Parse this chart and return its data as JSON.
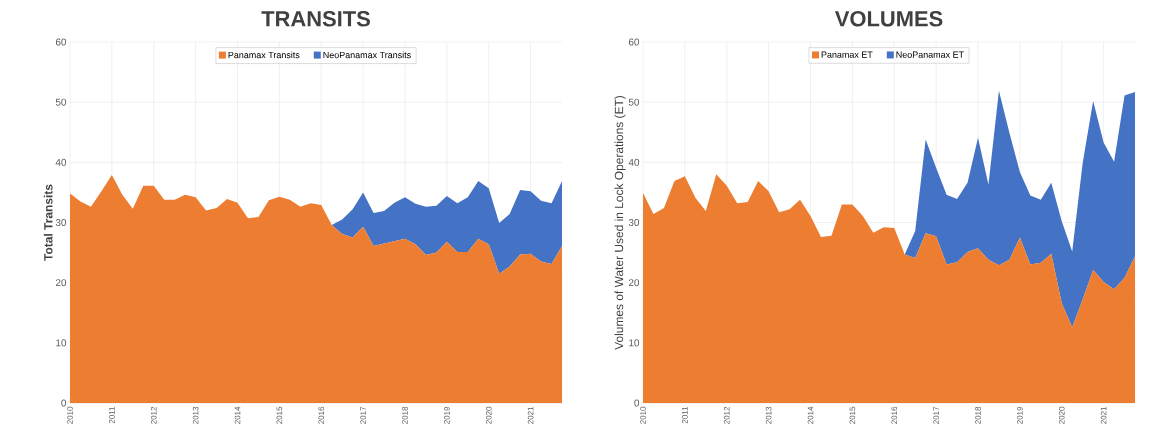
{
  "chart_data": [
    {
      "type": "area",
      "title": "TRANSITS",
      "ylabel": "Total Transits",
      "stacked": true,
      "grid": true,
      "legend": "top",
      "x": [
        2010,
        2010.25,
        2010.5,
        2010.75,
        2011,
        2011.25,
        2011.5,
        2011.75,
        2012,
        2012.25,
        2012.5,
        2012.75,
        2013,
        2013.25,
        2013.5,
        2013.75,
        2014,
        2014.25,
        2014.5,
        2014.75,
        2015,
        2015.25,
        2015.5,
        2015.75,
        2016,
        2016.25,
        2016.5,
        2016.75,
        2017,
        2017.25,
        2017.5,
        2017.75,
        2018,
        2018.25,
        2018.5,
        2018.75,
        2019,
        2019.25,
        2019.5,
        2019.75,
        2020,
        2020.25,
        2020.5,
        2020.75,
        2021,
        2021.25,
        2021.5,
        2021.75
      ],
      "xlim": [
        2010,
        2021.75
      ],
      "xticks": [
        2010,
        2011,
        2012,
        2013,
        2014,
        2015,
        2016,
        2017,
        2018,
        2019,
        2020,
        2021
      ],
      "ylim": [
        0,
        60
      ],
      "yticks": [
        0,
        10,
        20,
        30,
        40,
        50,
        60
      ],
      "series": [
        {
          "name": "Panamax Transits",
          "color": "#ed7d31",
          "values": [
            34.8,
            33.5,
            32.6,
            35.2,
            37.9,
            34.6,
            32.3,
            36.1,
            36.1,
            33.8,
            33.8,
            34.6,
            34.2,
            32.0,
            32.4,
            33.9,
            33.3,
            30.7,
            30.9,
            33.7,
            34.3,
            33.8,
            32.6,
            33.2,
            32.9,
            29.6,
            28.1,
            27.5,
            29.3,
            26.1,
            26.5,
            26.9,
            27.3,
            26.4,
            24.6,
            25.0,
            26.8,
            25.1,
            25.1,
            27.3,
            26.4,
            21.5,
            22.7,
            24.7,
            24.8,
            23.5,
            23.1,
            26.1
          ]
        },
        {
          "name": "NeoPanamax Transits",
          "color": "#4472c4",
          "values": [
            0,
            0,
            0,
            0,
            0,
            0,
            0,
            0,
            0,
            0,
            0,
            0,
            0,
            0,
            0,
            0,
            0,
            0,
            0,
            0,
            0,
            0,
            0,
            0,
            0,
            0,
            2.4,
            4.7,
            5.7,
            5.5,
            5.4,
            6.4,
            6.9,
            6.7,
            8.0,
            7.8,
            7.6,
            8.1,
            9.1,
            9.6,
            9.3,
            8.4,
            8.7,
            10.7,
            10.4,
            10.1,
            10.1,
            10.8
          ]
        }
      ]
    },
    {
      "type": "area",
      "title": "VOLUMES",
      "ylabel": "Volumes of Water Used in Lock Operations (ET)",
      "stacked": true,
      "grid": true,
      "legend": "top",
      "x": [
        2010,
        2010.25,
        2010.5,
        2010.75,
        2011,
        2011.25,
        2011.5,
        2011.75,
        2012,
        2012.25,
        2012.5,
        2012.75,
        2013,
        2013.25,
        2013.5,
        2013.75,
        2014,
        2014.25,
        2014.5,
        2014.75,
        2015,
        2015.25,
        2015.5,
        2015.75,
        2016,
        2016.25,
        2016.5,
        2016.75,
        2017,
        2017.25,
        2017.5,
        2017.75,
        2018,
        2018.25,
        2018.5,
        2018.75,
        2019,
        2019.25,
        2019.5,
        2019.75,
        2020,
        2020.25,
        2020.5,
        2020.75,
        2021,
        2021.25,
        2021.5,
        2021.75
      ],
      "xlim": [
        2010,
        2021.75
      ],
      "xticks": [
        2010,
        2011,
        2012,
        2013,
        2014,
        2015,
        2016,
        2017,
        2018,
        2019,
        2020,
        2021
      ],
      "ylim": [
        0,
        60
      ],
      "yticks": [
        0,
        10,
        20,
        30,
        40,
        50,
        60
      ],
      "series": [
        {
          "name": "Panamax ET",
          "color": "#ed7d31",
          "values": [
            34.9,
            31.4,
            32.4,
            36.9,
            37.7,
            34.1,
            31.9,
            38.0,
            36.1,
            33.2,
            33.4,
            36.9,
            35.2,
            31.7,
            32.2,
            33.8,
            31.1,
            27.6,
            27.8,
            33.0,
            33.0,
            31.1,
            28.3,
            29.2,
            29.1,
            24.7,
            24.1,
            28.2,
            27.7,
            23.0,
            23.4,
            25.1,
            25.7,
            23.8,
            22.9,
            23.8,
            27.5,
            23.0,
            23.3,
            24.8,
            16.6,
            12.6,
            17.2,
            22.1,
            20.1,
            18.9,
            20.8,
            24.4
          ]
        },
        {
          "name": "NeoPanamax ET",
          "color": "#4472c4",
          "values": [
            0,
            0,
            0,
            0,
            0,
            0,
            0,
            0,
            0,
            0,
            0,
            0,
            0,
            0,
            0,
            0,
            0,
            0,
            0,
            0,
            0,
            0,
            0,
            0,
            0,
            0,
            4.5,
            15.6,
            11.4,
            11.6,
            10.5,
            11.5,
            18.4,
            12.5,
            29.0,
            21.1,
            10.9,
            11.5,
            10.5,
            11.8,
            13.6,
            12.6,
            22.7,
            28.1,
            23.2,
            21.2,
            30.3,
            27.3
          ]
        }
      ]
    }
  ]
}
